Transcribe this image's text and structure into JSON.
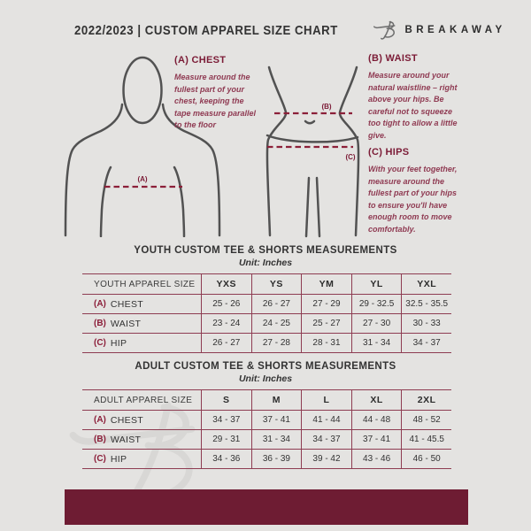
{
  "header": {
    "title": "2022/2023  |  CUSTOM APPAREL SIZE CHART",
    "brand": "BREAKAWAY"
  },
  "guide": {
    "chest": {
      "heading": "(A) CHEST",
      "body": "Measure around the fullest part of your chest, keeping the tape measure parallel to the floor"
    },
    "waist": {
      "heading": "(B) WAIST",
      "body": "Measure around your natural waistline – right above your hips. Be careful not to squeeze too tight to allow a little give."
    },
    "hips": {
      "heading": "(C) HIPS",
      "body": "With your feet together, measure around the fullest part of your hips to ensure you'll have enough room to move comfortably."
    },
    "markers": {
      "a": "(A)",
      "b": "(B)",
      "c": "(C)"
    }
  },
  "youth": {
    "title": "YOUTH CUSTOM TEE & SHORTS MEASUREMENTS",
    "unit": "Unit: Inches",
    "header": [
      "YOUTH APPAREL SIZE",
      "YXS",
      "YS",
      "YM",
      "YL",
      "YXL"
    ],
    "rows": [
      {
        "prefix": "(A)",
        "label": "CHEST",
        "values": [
          "25 - 26",
          "26 - 27",
          "27 - 29",
          "29 - 32.5",
          "32.5 - 35.5"
        ]
      },
      {
        "prefix": "(B)",
        "label": "WAIST",
        "values": [
          "23 - 24",
          "24 - 25",
          "25 - 27",
          "27 - 30",
          "30 - 33"
        ]
      },
      {
        "prefix": "(C)",
        "label": "HIP",
        "values": [
          "26 - 27",
          "27 - 28",
          "28 - 31",
          "31 - 34",
          "34 - 37"
        ]
      }
    ]
  },
  "adult": {
    "title": "ADULT CUSTOM TEE & SHORTS MEASUREMENTS",
    "unit": "Unit: Inches",
    "header": [
      "ADULT APPAREL SIZE",
      "S",
      "M",
      "L",
      "XL",
      "2XL"
    ],
    "rows": [
      {
        "prefix": "(A)",
        "label": "CHEST",
        "values": [
          "34 - 37",
          "37 - 41",
          "41 - 44",
          "44 - 48",
          "48 - 52"
        ]
      },
      {
        "prefix": "(B)",
        "label": "WAIST",
        "values": [
          "29 - 31",
          "31 - 34",
          "34 - 37",
          "37 - 41",
          "41 - 45.5"
        ]
      },
      {
        "prefix": "(C)",
        "label": "HIP",
        "values": [
          "34 - 36",
          "36 - 39",
          "39 - 42",
          "43 - 46",
          "46 - 50"
        ]
      }
    ]
  },
  "colors": {
    "background": "#e4e3e1",
    "maroon_dark": "#6e1c33",
    "maroon_heading": "#7b1b36",
    "table_border": "#8e3c52"
  }
}
